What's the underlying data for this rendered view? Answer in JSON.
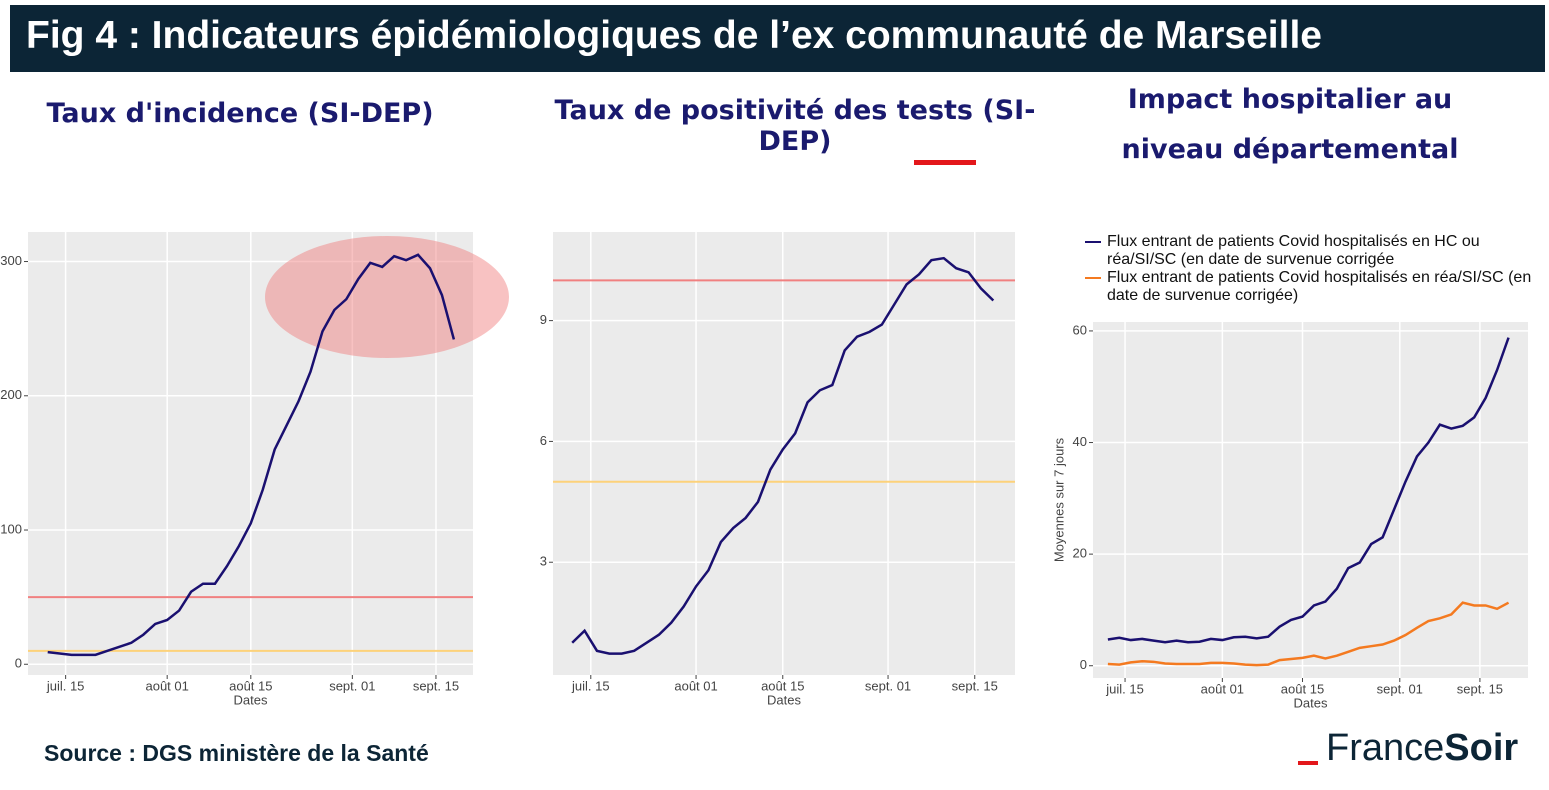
{
  "header": {
    "title": "Fig 4 : Indicateurs épidémiologiques de l’ex communauté de Marseille"
  },
  "chart_data": [
    {
      "type": "line",
      "title": "Taux d'incidence (SI-DEP)",
      "x_label": "Dates",
      "color": "#1a1070",
      "x": [
        12,
        14,
        16,
        18,
        20,
        22,
        24,
        26,
        28,
        30,
        32,
        34,
        36,
        38,
        40,
        42,
        44,
        46,
        48,
        50,
        52,
        54,
        56,
        58,
        60,
        62,
        64,
        66,
        68,
        70,
        72,
        74,
        76,
        78,
        80
      ],
      "values": [
        9,
        8,
        7,
        7,
        7,
        10,
        13,
        16,
        22,
        30,
        33,
        40,
        54,
        60,
        60,
        73,
        88,
        105,
        130,
        160,
        178,
        196,
        218,
        248,
        264,
        272,
        287,
        299,
        296,
        304,
        301,
        305,
        295,
        275,
        242
      ],
      "xlim": [
        8.7,
        83.2
      ],
      "xticks": [
        {
          "value": 15,
          "label": "juil. 15"
        },
        {
          "value": 32,
          "label": "août 01"
        },
        {
          "value": 46,
          "label": "août 15"
        },
        {
          "value": 63,
          "label": "sept. 01"
        },
        {
          "value": 77,
          "label": "sept. 15"
        }
      ],
      "ylim": [
        -8,
        322
      ],
      "yticks": [
        0,
        100,
        200,
        300
      ],
      "grid": true,
      "hlines": [
        {
          "value": 50,
          "color": "#f08080"
        },
        {
          "value": 10,
          "color": "#fdd27a"
        }
      ]
    },
    {
      "type": "line",
      "title": "Taux de positivité des tests (SI-DEP)",
      "x_label": "Dates",
      "color": "#1a1070",
      "x": [
        12,
        14,
        16,
        18,
        20,
        22,
        24,
        26,
        28,
        30,
        32,
        34,
        36,
        38,
        40,
        42,
        44,
        46,
        48,
        50,
        52,
        54,
        56,
        58,
        60,
        62,
        64,
        66,
        68,
        70,
        72,
        74,
        76,
        78,
        80
      ],
      "values": [
        1.0,
        1.3,
        0.8,
        0.73,
        0.73,
        0.8,
        1.0,
        1.2,
        1.5,
        1.9,
        2.4,
        2.8,
        3.5,
        3.85,
        4.1,
        4.5,
        5.3,
        5.8,
        6.2,
        6.97,
        7.27,
        7.4,
        8.26,
        8.6,
        8.72,
        8.9,
        9.4,
        9.9,
        10.15,
        10.5,
        10.55,
        10.3,
        10.2,
        9.8,
        9.5
      ],
      "xlim": [
        8.9,
        83.5
      ],
      "xticks": [
        {
          "value": 15,
          "label": "juil. 15"
        },
        {
          "value": 32,
          "label": "août 01"
        },
        {
          "value": 46,
          "label": "août 15"
        },
        {
          "value": 63,
          "label": "sept. 01"
        },
        {
          "value": 77,
          "label": "sept. 15"
        }
      ],
      "ylim": [
        0.2,
        11.2
      ],
      "yticks": [
        3,
        6,
        9
      ],
      "grid": true,
      "hlines": [
        {
          "value": 10,
          "color": "#f08080"
        },
        {
          "value": 5,
          "color": "#fdd27a"
        }
      ]
    },
    {
      "type": "line",
      "title": "Impact hospitalier au niveau départemental",
      "x_label": "Dates",
      "y_label": "Moyennes sur 7 jours",
      "x": [
        12,
        14,
        16,
        18,
        20,
        22,
        24,
        26,
        28,
        30,
        32,
        34,
        36,
        38,
        40,
        42,
        44,
        46,
        48,
        50,
        52,
        54,
        56,
        58,
        60,
        62,
        64,
        66,
        68,
        70,
        72,
        74,
        76,
        78,
        80,
        82
      ],
      "series": [
        {
          "name": "Flux entrant de patients Covid hospitalisés en HC ou réa/SI/SC (en date de survenue corrigée",
          "color": "#1a1070",
          "values": [
            4.7,
            5,
            4.6,
            4.8,
            4.5,
            4.2,
            4.5,
            4.2,
            4.3,
            4.8,
            4.6,
            5.1,
            5.2,
            4.9,
            5.2,
            7,
            8.2,
            8.8,
            10.8,
            11.5,
            13.8,
            17.5,
            18.5,
            21.8,
            23,
            28,
            33,
            37.5,
            40,
            43.2,
            42.5,
            43,
            44.5,
            48,
            53,
            58.8
          ]
        },
        {
          "name": "Flux entrant de patients Covid hospitalisés en réa/SI/SC (en date de survenue corrigée)",
          "color": "#f47a20",
          "values": [
            0.3,
            0.2,
            0.6,
            0.8,
            0.7,
            0.4,
            0.3,
            0.3,
            0.3,
            0.5,
            0.5,
            0.4,
            0.2,
            0.1,
            0.2,
            1.0,
            1.2,
            1.4,
            1.8,
            1.3,
            1.8,
            2.5,
            3.2,
            3.5,
            3.8,
            4.5,
            5.5,
            6.8,
            8,
            8.5,
            9.2,
            11.3,
            10.8,
            10.8,
            10.2,
            11.3
          ]
        }
      ],
      "xlim": [
        9.4,
        85.4
      ],
      "xticks": [
        {
          "value": 15,
          "label": "juil. 15"
        },
        {
          "value": 32,
          "label": "août 01"
        },
        {
          "value": 46,
          "label": "août 15"
        },
        {
          "value": 63,
          "label": "sept. 01"
        },
        {
          "value": 77,
          "label": "sept. 15"
        }
      ],
      "ylim": [
        -2.2,
        61.6
      ],
      "yticks": [
        0,
        20,
        40,
        60
      ],
      "grid": true,
      "legend": "top"
    }
  ],
  "footer": {
    "source": "Source : DGS ministère de la Santé",
    "logo_a": "France",
    "logo_b": "Soir"
  }
}
